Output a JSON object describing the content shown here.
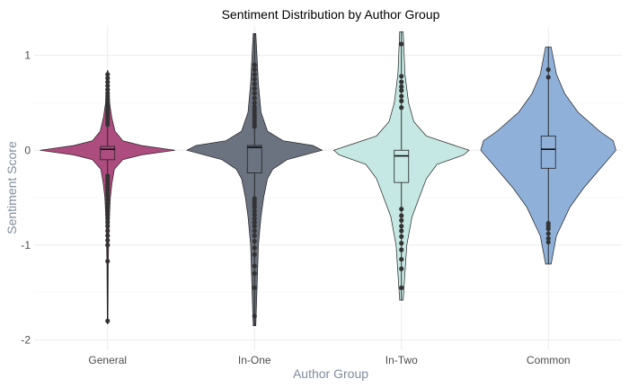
{
  "chart_data": {
    "type": "violin",
    "title": "Sentiment Distribution by Author Group",
    "xlabel": "Author Group",
    "ylabel": "Sentiment Score",
    "categories": [
      "General",
      "In-One",
      "In-Two",
      "Common"
    ],
    "ylim": [
      -2.1,
      1.3
    ],
    "y_ticks": [
      -2,
      -1,
      0,
      1
    ],
    "y_tick_labels": [
      "-2",
      "-1",
      "0",
      "1"
    ],
    "grid": true,
    "legend": "none",
    "series": [
      {
        "category": "General",
        "color": "#ad4c7f",
        "min": -1.83,
        "max": 0.84,
        "q1": -0.1,
        "median": 0.01,
        "q3": 0.04,
        "density": [
          [
            -1.83,
            0.01
          ],
          [
            -1.2,
            0.02
          ],
          [
            -0.8,
            0.04
          ],
          [
            -0.5,
            0.08
          ],
          [
            -0.35,
            0.13
          ],
          [
            -0.2,
            0.2
          ],
          [
            -0.1,
            0.45
          ],
          [
            -0.05,
            1.0
          ],
          [
            0.0,
            2.0
          ],
          [
            0.05,
            1.0
          ],
          [
            0.1,
            0.45
          ],
          [
            0.2,
            0.22
          ],
          [
            0.35,
            0.12
          ],
          [
            0.5,
            0.06
          ],
          [
            0.84,
            0.01
          ]
        ],
        "outliers": [
          -1.8,
          -1.17,
          -1.0,
          -0.95,
          -0.9,
          -0.85,
          -0.8,
          -0.76,
          -0.72,
          -0.68,
          -0.64,
          -0.6,
          -0.56,
          -0.52,
          -0.48,
          -0.45,
          -0.42,
          -0.39,
          -0.36,
          -0.33,
          -0.3,
          -0.27,
          0.27,
          0.3,
          0.33,
          0.36,
          0.39,
          0.42,
          0.45,
          0.48,
          0.51,
          0.54,
          0.57,
          0.6,
          0.64,
          0.68,
          0.72,
          0.76,
          0.8
        ]
      },
      {
        "category": "In-One",
        "color": "#6b7280",
        "min": -1.85,
        "max": 1.23,
        "q1": -0.24,
        "median": 0.03,
        "q3": 0.05,
        "density": [
          [
            -1.85,
            0.01
          ],
          [
            -1.0,
            0.03
          ],
          [
            -0.7,
            0.05
          ],
          [
            -0.5,
            0.07
          ],
          [
            -0.3,
            0.1
          ],
          [
            -0.2,
            0.14
          ],
          [
            -0.1,
            0.25
          ],
          [
            0.0,
            0.52
          ],
          [
            0.05,
            0.45
          ],
          [
            0.1,
            0.22
          ],
          [
            0.2,
            0.1
          ],
          [
            0.4,
            0.05
          ],
          [
            0.7,
            0.03
          ],
          [
            1.23,
            0.01
          ]
        ],
        "outliers": [
          -1.75,
          -1.45,
          -1.3,
          -1.22,
          -1.1,
          -1.03,
          -0.96,
          -0.9,
          -0.85,
          -0.8,
          -0.76,
          -0.72,
          -0.68,
          -0.64,
          -0.6,
          -0.57,
          -0.54,
          -0.51,
          0.25,
          0.28,
          0.31,
          0.34,
          0.37,
          0.4,
          0.43,
          0.46,
          0.5,
          0.55,
          0.6,
          0.65,
          0.7,
          0.75,
          0.8,
          0.85,
          0.9
        ]
      },
      {
        "category": "In-Two",
        "color": "#c5e8e4",
        "min": -1.58,
        "max": 1.25,
        "q1": -0.34,
        "median": -0.06,
        "q3": 0.0,
        "density": [
          [
            -1.58,
            0.01
          ],
          [
            -1.0,
            0.03
          ],
          [
            -0.7,
            0.06
          ],
          [
            -0.5,
            0.1
          ],
          [
            -0.3,
            0.14
          ],
          [
            -0.15,
            0.2
          ],
          [
            -0.05,
            0.35
          ],
          [
            0.0,
            0.38
          ],
          [
            0.05,
            0.3
          ],
          [
            0.15,
            0.14
          ],
          [
            0.3,
            0.07
          ],
          [
            0.5,
            0.04
          ],
          [
            0.8,
            0.02
          ],
          [
            1.25,
            0.01
          ]
        ],
        "outliers": [
          -1.45,
          -1.25,
          -1.15,
          -1.05,
          -0.98,
          -0.91,
          -0.85,
          -0.8,
          -0.74,
          -0.69,
          -0.62,
          0.45,
          0.52,
          0.57,
          0.63,
          0.67,
          0.72,
          0.78,
          1.12
        ]
      },
      {
        "category": "Common",
        "color": "#8fb0d9",
        "min": -1.2,
        "max": 1.09,
        "q1": -0.19,
        "median": 0.01,
        "q3": 0.15,
        "density": [
          [
            -1.2,
            0.01
          ],
          [
            -0.9,
            0.03
          ],
          [
            -0.6,
            0.08
          ],
          [
            -0.4,
            0.13
          ],
          [
            -0.2,
            0.19
          ],
          [
            0.0,
            0.25
          ],
          [
            0.1,
            0.24
          ],
          [
            0.2,
            0.19
          ],
          [
            0.4,
            0.11
          ],
          [
            0.6,
            0.06
          ],
          [
            0.8,
            0.03
          ],
          [
            1.09,
            0.01
          ]
        ],
        "outliers": [
          -0.97,
          -0.93,
          -0.88,
          -0.83,
          -0.8,
          -0.77,
          0.77,
          0.85
        ]
      }
    ]
  }
}
